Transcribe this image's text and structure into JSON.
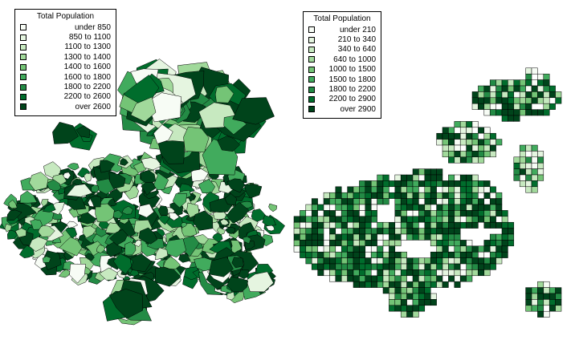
{
  "maps": [
    {
      "id": "tracts",
      "legend": {
        "title": "Total Population",
        "items": [
          {
            "label": "under 850",
            "color": "#f7fcf5"
          },
          {
            "label": "850 to 1100",
            "color": "#e5f5e0"
          },
          {
            "label": "1100 to 1300",
            "color": "#c7e9c0"
          },
          {
            "label": "1300 to 1400",
            "color": "#a1d99b"
          },
          {
            "label": "1400 to 1600",
            "color": "#74c476"
          },
          {
            "label": "1600 to 1800",
            "color": "#41ab5d"
          },
          {
            "label": "1800 to 2200",
            "color": "#238b45"
          },
          {
            "label": "2200 to 2600",
            "color": "#006d2c"
          },
          {
            "label": "over 2600",
            "color": "#00441b"
          }
        ]
      }
    },
    {
      "id": "grid",
      "legend": {
        "title": "Total Population",
        "items": [
          {
            "label": "under 210",
            "color": "#f7fcf5"
          },
          {
            "label": "210 to 340",
            "color": "#e5f5e0"
          },
          {
            "label": "340 to 640",
            "color": "#c7e9c0"
          },
          {
            "label": "640 to 1000",
            "color": "#a1d99b"
          },
          {
            "label": "1000 to 1500",
            "color": "#74c476"
          },
          {
            "label": "1500 to 1800",
            "color": "#41ab5d"
          },
          {
            "label": "1800 to 2200",
            "color": "#238b45"
          },
          {
            "label": "2200 to 2900",
            "color": "#006d2c"
          },
          {
            "label": "over 2900",
            "color": "#00441b"
          }
        ]
      }
    }
  ]
}
